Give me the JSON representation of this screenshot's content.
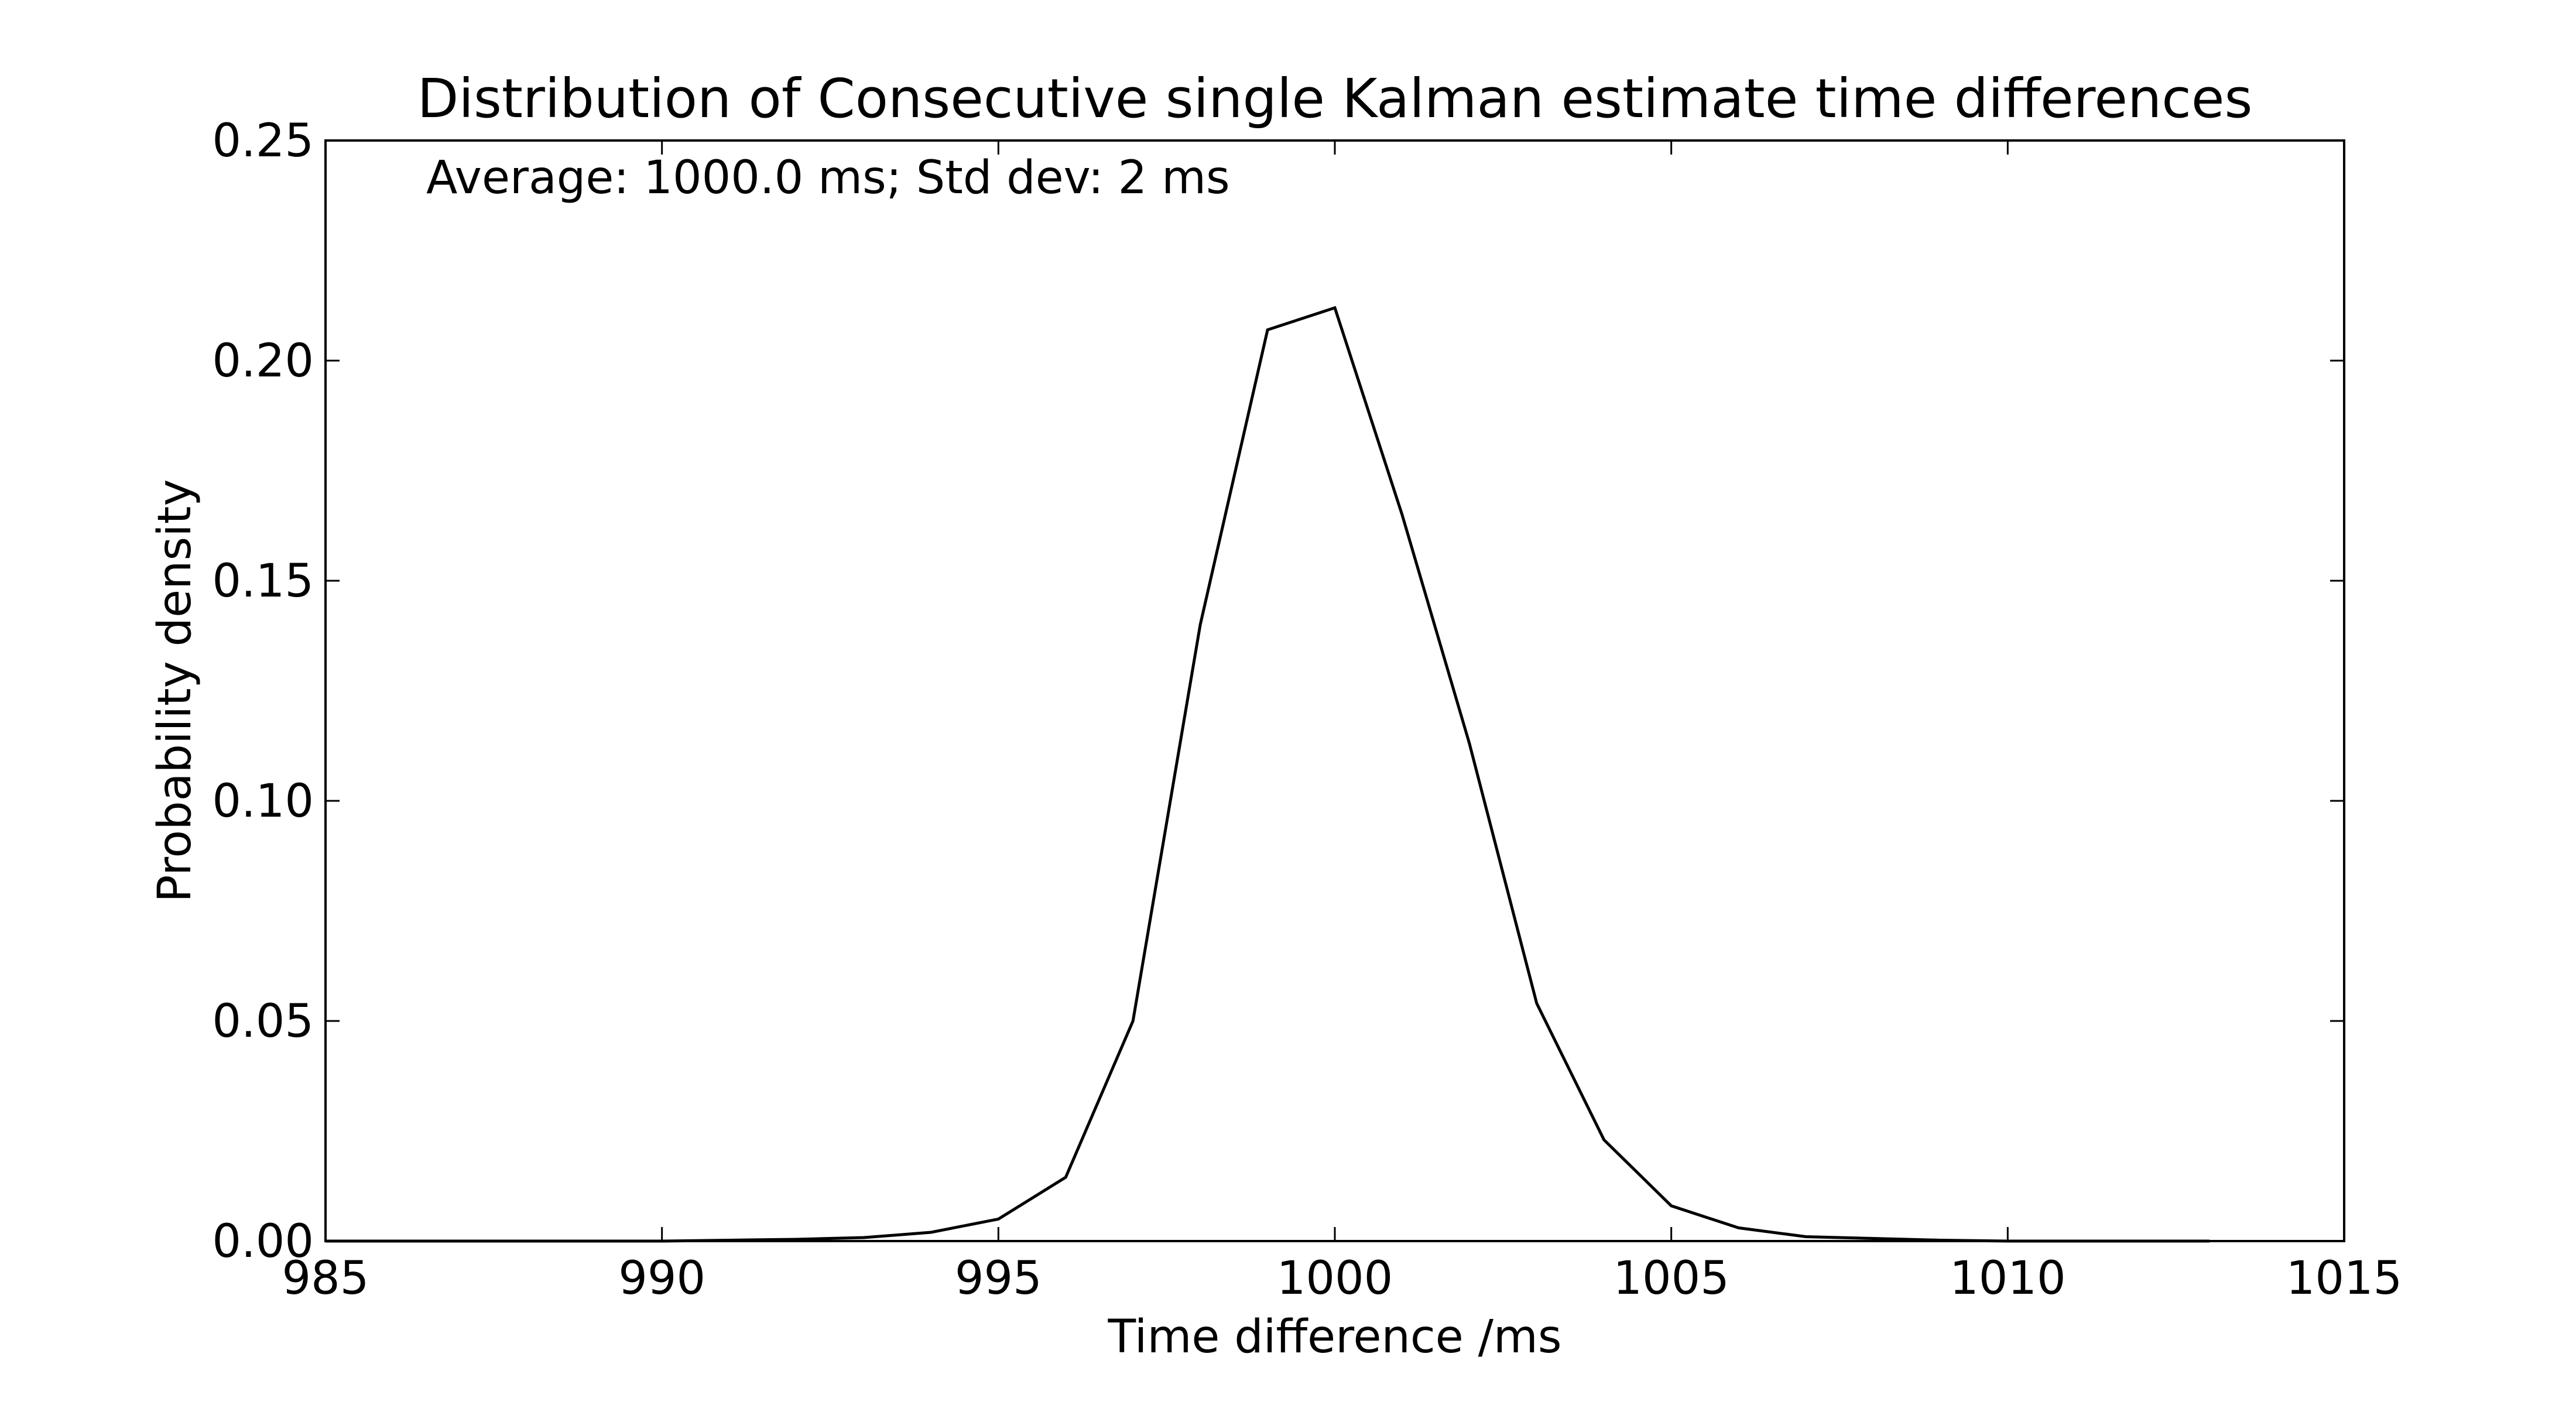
{
  "chart_data": {
    "type": "line",
    "title": "Distribution of Consecutive single Kalman estimate time differences",
    "annotation": "Average: 1000.0 ms;  Std dev: 2 ms",
    "xlabel": "Time difference /ms",
    "ylabel": "Probability density",
    "xlim": [
      985,
      1015
    ],
    "ylim": [
      0,
      0.25
    ],
    "x_ticks": [
      985,
      990,
      995,
      1000,
      1005,
      1010,
      1015
    ],
    "x_tick_labels": [
      "985",
      "990",
      "995",
      "1000",
      "1005",
      "1010",
      "1015"
    ],
    "y_ticks": [
      0,
      0.05,
      0.1,
      0.15,
      0.2,
      0.25
    ],
    "y_tick_labels": [
      "0.00",
      "0.05",
      "0.10",
      "0.15",
      "0.20",
      "0.25"
    ],
    "grid": false,
    "series": [
      {
        "name": "density",
        "color": "#000000",
        "x": [
          985.0,
          986.0,
          987.0,
          988.0,
          989.0,
          990.0,
          991.0,
          992.0,
          993.0,
          994.0,
          995.0,
          996.0,
          997.0,
          998.0,
          999.0,
          1000.0,
          1001.0,
          1002.0,
          1003.0,
          1004.0,
          1005.0,
          1006.0,
          1007.0,
          1008.0,
          1009.0,
          1010.0,
          1011.0,
          1012.0,
          1013.0
        ],
        "y": [
          0.0,
          0.0,
          0.0,
          0.0,
          0.0,
          0.0,
          0.0002,
          0.0004,
          0.0008,
          0.002,
          0.005,
          0.0145,
          0.05,
          0.14,
          0.207,
          0.212,
          0.165,
          0.113,
          0.054,
          0.023,
          0.008,
          0.003,
          0.001,
          0.0006,
          0.0002,
          0.0,
          0.0,
          0.0,
          0.0
        ]
      }
    ]
  }
}
